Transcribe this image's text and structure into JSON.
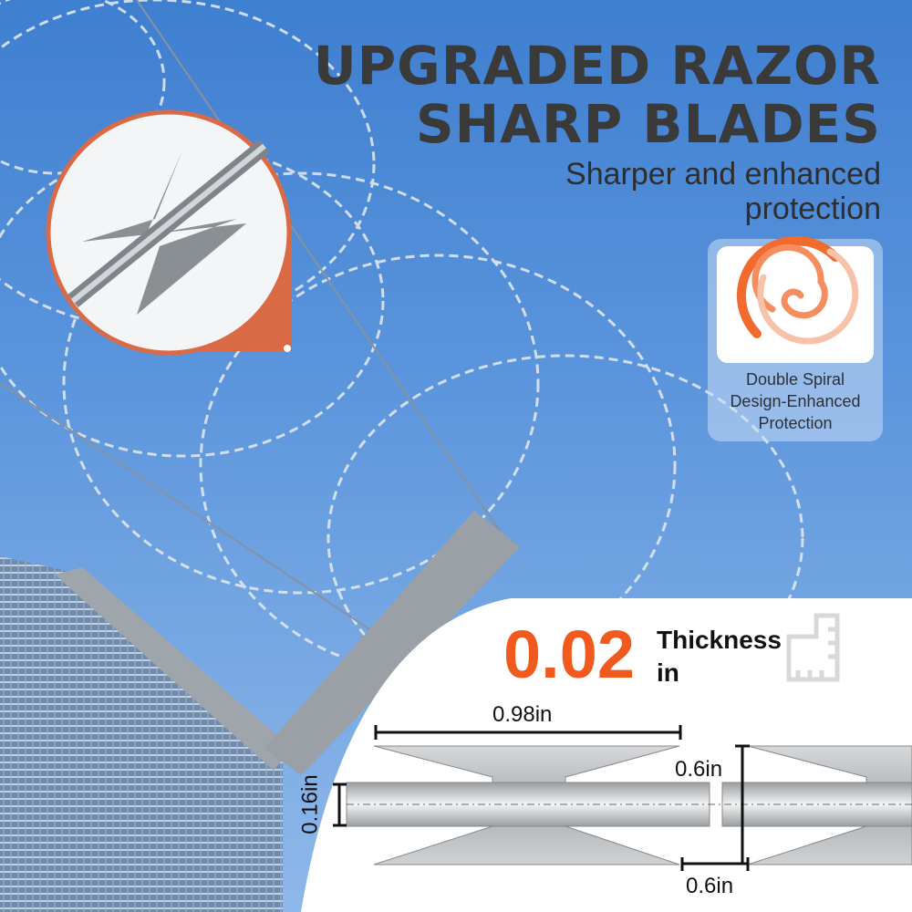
{
  "headline": {
    "line1": "UPGRADED RAZOR",
    "line2": "SHARP BLADES"
  },
  "subheadline": {
    "line1": "Sharper and enhanced",
    "line2": "protection"
  },
  "feature_card": {
    "icon": "double-spiral-icon",
    "line1": "Double Spiral",
    "line2": "Design-Enhanced",
    "line3": "Protection"
  },
  "thickness": {
    "value": "0.02",
    "label": "Thickness",
    "unit": "in",
    "icon": "ruler-icon"
  },
  "dimensions": {
    "length": "0.98in",
    "height": "0.6in",
    "gap": "0.6in",
    "core": "0.16in"
  },
  "colors": {
    "accent": "#f15a1f",
    "sky": "#5a94dc",
    "text": "#3a3a3a"
  }
}
